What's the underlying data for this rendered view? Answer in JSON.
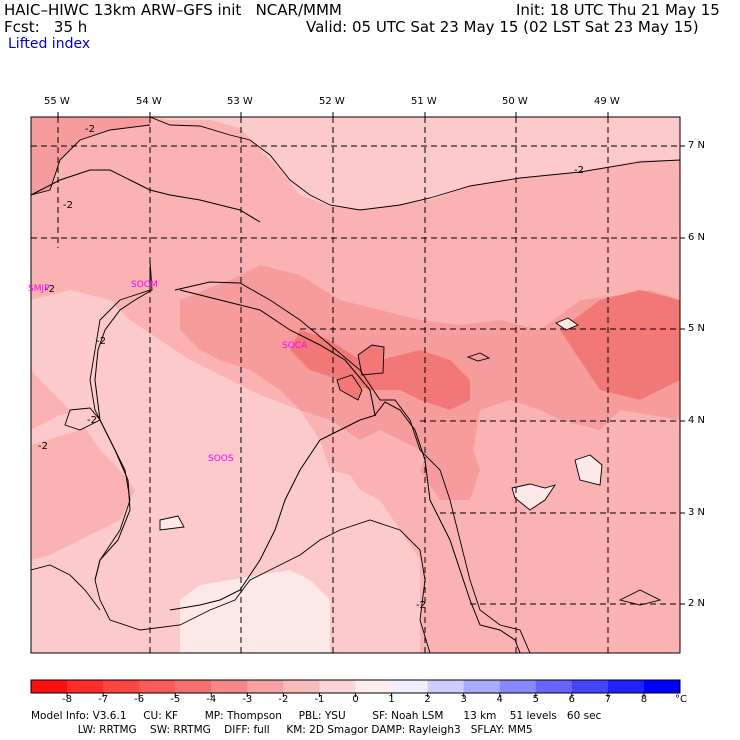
{
  "header": {
    "title": "HAIC–HIWC 13km ARW–GFS init   NCAR/MMM",
    "fcst": "Fcst:   35 h",
    "init": "Init: 18 UTC Thu 21 May 15",
    "valid": "Valid: 05 UTC Sat 23 May 15 (02 LST Sat 23 May 15)",
    "field": "Lifted index"
  },
  "map": {
    "lon_labels": [
      "55 W",
      "54 W",
      "53 W",
      "52 W",
      "51 W",
      "50 W",
      "49 W"
    ],
    "lat_labels": [
      "7 N",
      "6 N",
      "5 N",
      "4 N",
      "3 N",
      "2 N"
    ],
    "stations": [
      "SMJP",
      "SOCM",
      "SOCA",
      "SOOS"
    ],
    "contour_labels": [
      "-2",
      "-2",
      "-2",
      "-2",
      "-2",
      "-2",
      "-2",
      "-2"
    ],
    "colors": {
      "level_minus4": "#f27878",
      "level_minus3": "#f79c9c",
      "level_minus2": "#fab2b2",
      "level_minus1": "#fccaca",
      "level_0": "#fde8e8"
    }
  },
  "colorbar": {
    "labels": [
      "-8",
      "-7",
      "-6",
      "-5",
      "-4",
      "-3",
      "-2",
      "-1",
      "0",
      "1",
      "2",
      "3",
      "4",
      "5",
      "6",
      "7",
      "8"
    ],
    "unit": "°C",
    "colors": [
      "#ff1010",
      "#ff2a2a",
      "#ff4444",
      "#f95a5a",
      "#f57070",
      "#f58888",
      "#f7a2a2",
      "#f9bcbc",
      "#fcd6d6",
      "#ffeeee",
      "#eeeeff",
      "#ccccff",
      "#aaaaff",
      "#8888ff",
      "#6666ff",
      "#4444ff",
      "#2222ff",
      "#0000ff"
    ]
  },
  "footer": {
    "line1": "Model Info: V3.6.1     CU: KF        MP: Thompson     PBL: YSU        SF: Noah LSM      13 km    51 levels   60 sec",
    "line2": "              LW: RRTMG    SW: RRTMG    DIFF: full     KM: 2D Smagor DAMP: Rayleigh3   SFLAY: MM5"
  }
}
